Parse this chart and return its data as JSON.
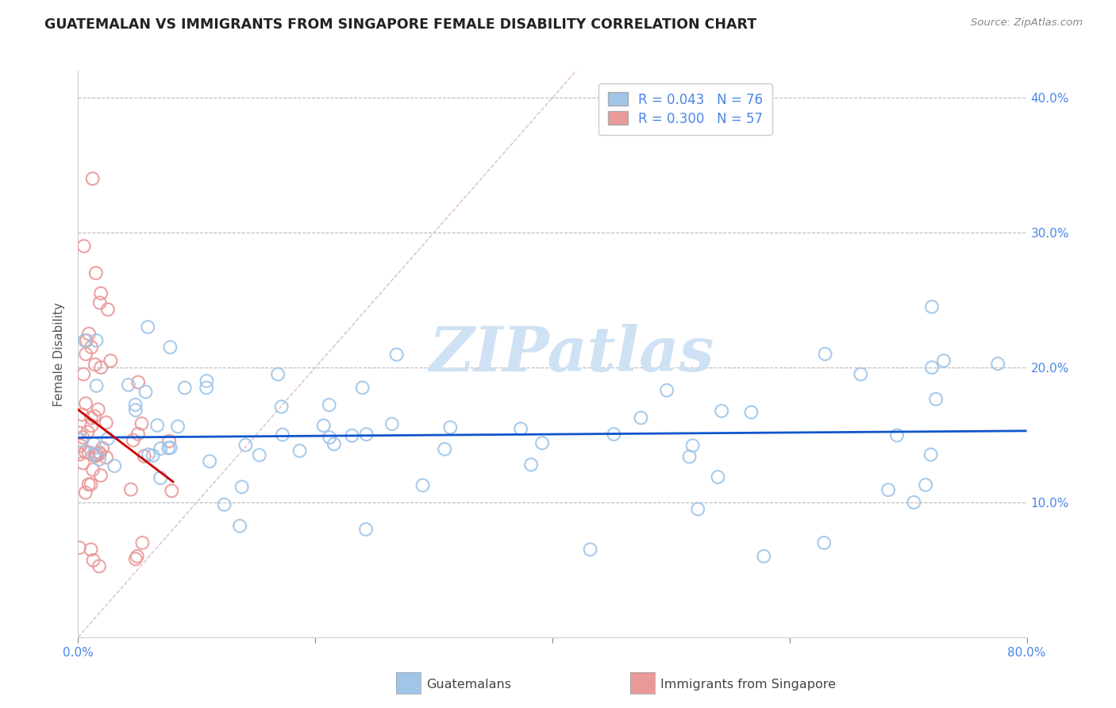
{
  "title": "GUATEMALAN VS IMMIGRANTS FROM SINGAPORE FEMALE DISABILITY CORRELATION CHART",
  "source_text": "Source: ZipAtlas.com",
  "ylabel": "Female Disability",
  "xlim": [
    0.0,
    0.8
  ],
  "ylim": [
    0.0,
    0.42
  ],
  "xticks": [
    0.0,
    0.2,
    0.4,
    0.6,
    0.8
  ],
  "yticks": [
    0.1,
    0.2,
    0.3,
    0.4
  ],
  "xtick_labels": [
    "0.0%",
    "",
    "",
    "",
    "80.0%"
  ],
  "ytick_labels_right": [
    "10.0%",
    "20.0%",
    "30.0%",
    "40.0%"
  ],
  "legend_label1": "Guatemalans",
  "legend_label2": "Immigrants from Singapore",
  "R1": 0.043,
  "N1": 76,
  "R2": 0.3,
  "N2": 57,
  "color_blue": "#9fc5e8",
  "color_pink": "#ea9999",
  "line_color_blue": "#1155cc",
  "line_color_pink": "#cc0000",
  "axis_color": "#4a86e8",
  "watermark_color": "#cfe2f3",
  "grid_color": "#b7b7b7",
  "diag_color": "#ddbbcc",
  "bottom_legend_text_color": "#444444"
}
